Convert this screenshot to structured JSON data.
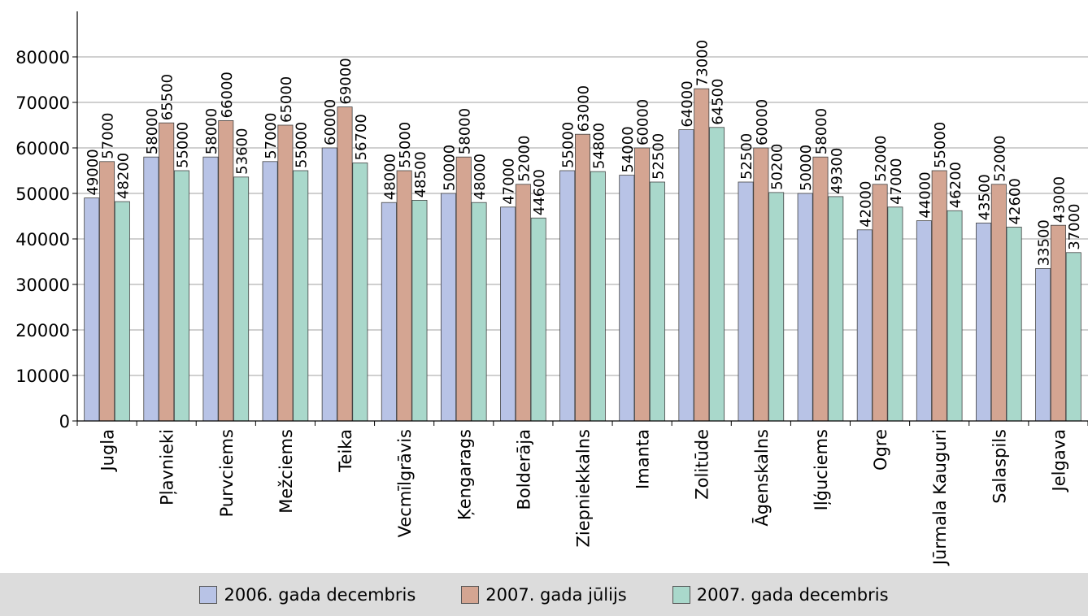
{
  "chart_data": {
    "type": "bar",
    "categories": [
      "Jugla",
      "Pļavnieki",
      "Purvciems",
      "Mežciems",
      "Teika",
      "Vecmīlgrāvis",
      "Ķengarags",
      "Bolderāja",
      "Ziepniekkalns",
      "Imanta",
      "Zolitūde",
      "Āgenskalns",
      "Iļģuciems",
      "Ogre",
      "Jūrmala Kauguri",
      "Salaspils",
      "Jelgava"
    ],
    "series": [
      {
        "name": "2006. gada decembris",
        "color": "#b8c3e6",
        "values": [
          49000,
          58000,
          58000,
          57000,
          60000,
          48000,
          50000,
          47000,
          55000,
          54000,
          64000,
          52500,
          50000,
          42000,
          44000,
          43500,
          33500
        ]
      },
      {
        "name": "2007. gada jūlijs",
        "color": "#d4a592",
        "values": [
          57000,
          65500,
          66000,
          65000,
          69000,
          55000,
          58000,
          52000,
          63000,
          60000,
          73000,
          60000,
          58000,
          52000,
          55000,
          52000,
          43000
        ]
      },
      {
        "name": "2007. gada decembris",
        "color": "#a9d8cb",
        "values": [
          48200,
          55000,
          53600,
          55000,
          56700,
          48500,
          48000,
          44600,
          54800,
          52500,
          64500,
          50200,
          49300,
          47000,
          46200,
          42600,
          37000
        ]
      }
    ],
    "title": "",
    "xlabel": "",
    "ylabel": "",
    "ylim": [
      0,
      90000
    ],
    "yticks": [
      0,
      10000,
      20000,
      30000,
      40000,
      50000,
      60000,
      70000,
      80000
    ],
    "grid": true,
    "legend_position": "bottom"
  }
}
